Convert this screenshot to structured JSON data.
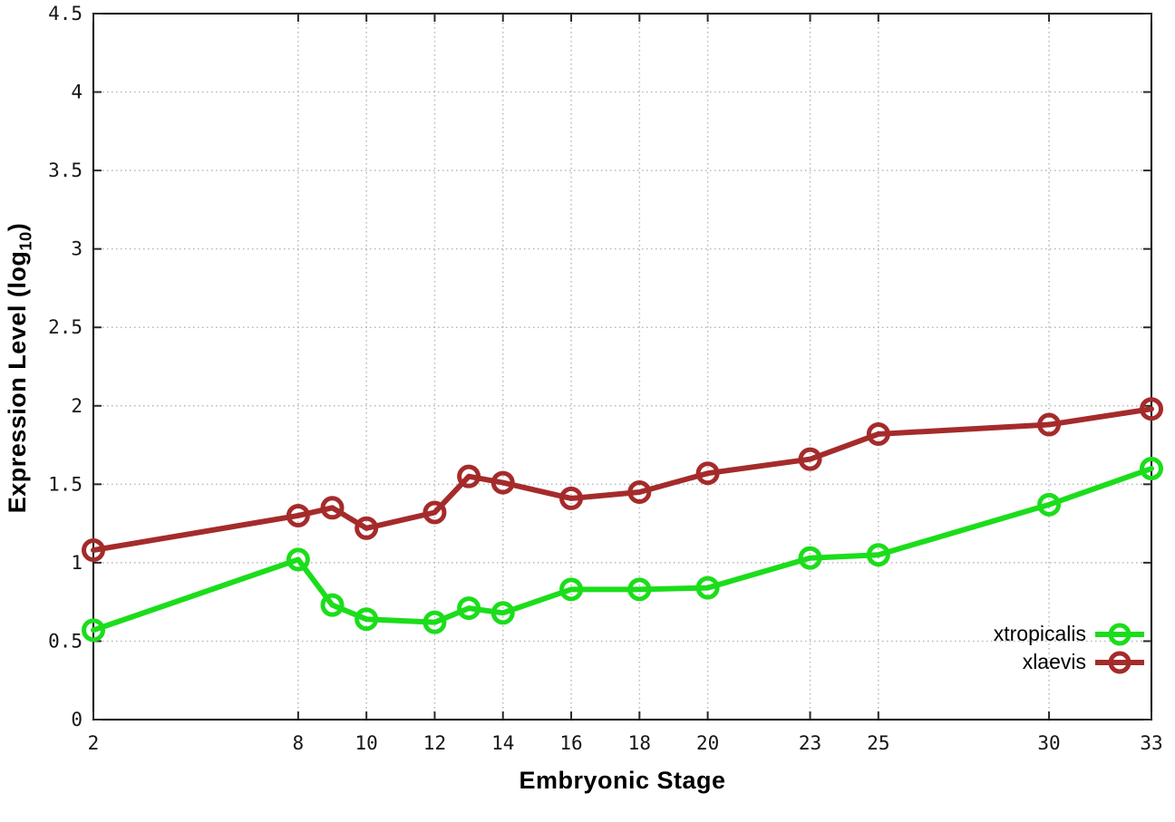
{
  "chart_data": {
    "type": "line",
    "title": "",
    "xlabel": "Embryonic Stage",
    "ylabel": "Expression Level (log10)",
    "ylabel_parts": {
      "prefix": "Expression Level (log",
      "sub": "10",
      "suffix": ")"
    },
    "x": [
      2,
      8,
      9,
      10,
      12,
      13,
      14,
      16,
      18,
      20,
      23,
      25,
      30,
      33
    ],
    "x_ticks": [
      2,
      8,
      10,
      12,
      14,
      16,
      18,
      20,
      23,
      25,
      30,
      33
    ],
    "y_ticks": [
      0,
      0.5,
      1,
      1.5,
      2,
      2.5,
      3,
      3.5,
      4,
      4.5
    ],
    "xlim": [
      2,
      33
    ],
    "ylim": [
      0,
      4.5
    ],
    "grid": true,
    "legend_position": "bottom-right",
    "series": [
      {
        "name": "xtropicalis",
        "color": "#1bdd1b",
        "values": [
          0.57,
          1.02,
          0.73,
          0.64,
          0.62,
          0.71,
          0.68,
          0.83,
          0.83,
          0.84,
          1.03,
          1.05,
          1.37,
          1.6
        ]
      },
      {
        "name": "xlaevis",
        "color": "#a52b2b",
        "values": [
          1.08,
          1.3,
          1.35,
          1.22,
          1.32,
          1.55,
          1.51,
          1.41,
          1.45,
          1.57,
          1.66,
          1.82,
          1.88,
          1.98
        ]
      }
    ],
    "colors": {
      "background": "#ffffff",
      "border": "#000000",
      "grid": "#b8b8b8",
      "tick_text": "#161616"
    }
  }
}
